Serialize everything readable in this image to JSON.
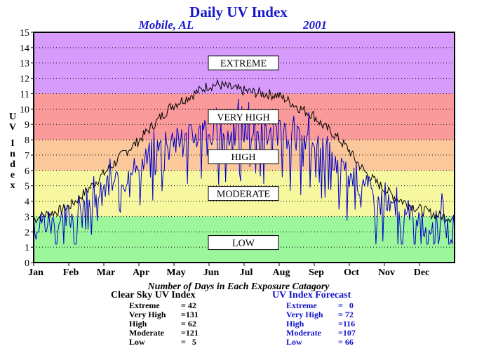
{
  "chart_data": {
    "type": "line",
    "title": "Daily UV Index",
    "location": "Mobile, AL",
    "year": "2001",
    "ylabel": "UV Index",
    "ylim": [
      0,
      15
    ],
    "yticks": [
      0,
      1,
      2,
      3,
      4,
      5,
      6,
      7,
      8,
      9,
      10,
      11,
      12,
      13,
      14,
      15
    ],
    "months": [
      "Jan",
      "Feb",
      "Mar",
      "Apr",
      "May",
      "Jun",
      "Jul",
      "Aug",
      "Sep",
      "Oct",
      "Nov",
      "Dec"
    ],
    "grid": true,
    "bands": [
      {
        "label": "LOW",
        "from": 0,
        "to": 3,
        "color": "#9cf79c"
      },
      {
        "label": "MODERATE",
        "from": 3,
        "to": 6,
        "color": "#f7f7a0"
      },
      {
        "label": "HIGH",
        "from": 6,
        "to": 8,
        "color": "#fbc89b"
      },
      {
        "label": "VERY HIGH",
        "from": 8,
        "to": 11,
        "color": "#fb9a9a"
      },
      {
        "label": "EXTREME",
        "from": 11,
        "to": 15,
        "color": "#d79cfb"
      }
    ],
    "series": [
      {
        "name": "Clear Sky UV Index",
        "color": "#000000",
        "x": [
          1,
          10,
          20,
          31,
          40,
          50,
          59,
          70,
          80,
          90,
          100,
          110,
          120,
          130,
          140,
          151,
          160,
          170,
          181,
          190,
          200,
          212,
          220,
          230,
          243,
          250,
          260,
          273,
          280,
          290,
          304,
          315,
          325,
          334,
          345,
          355,
          365
        ],
        "y": [
          2.8,
          3.1,
          3.3,
          3.6,
          4.2,
          4.9,
          5.6,
          6.4,
          7.2,
          7.8,
          8.6,
          9.4,
          10.2,
          10.6,
          11.0,
          11.5,
          11.6,
          11.4,
          11.2,
          11.1,
          11.0,
          10.9,
          10.6,
          10.1,
          9.6,
          9.0,
          8.4,
          7.4,
          6.6,
          5.7,
          4.8,
          4.2,
          3.8,
          3.5,
          3.2,
          3.0,
          2.9
        ]
      },
      {
        "name": "UV Index Forecast",
        "color": "#0000cc",
        "x": [
          1,
          10,
          20,
          31,
          40,
          50,
          59,
          70,
          80,
          90,
          100,
          110,
          120,
          130,
          140,
          151,
          160,
          170,
          181,
          190,
          200,
          212,
          220,
          230,
          243,
          250,
          260,
          273,
          280,
          290,
          304,
          315,
          325,
          334,
          345,
          355,
          365
        ],
        "y": [
          2.2,
          2.6,
          2.4,
          2.9,
          3.3,
          3.9,
          4.2,
          5.1,
          5.4,
          5.9,
          6.7,
          7.4,
          7.9,
          7.6,
          8.2,
          8.6,
          8.1,
          8.2,
          8.5,
          8.3,
          8.3,
          8.2,
          8.0,
          7.8,
          7.6,
          7.2,
          6.6,
          5.7,
          5.3,
          4.6,
          3.6,
          3.1,
          2.7,
          2.5,
          2.4,
          2.3,
          2.2
        ]
      }
    ]
  },
  "stats": {
    "heading": "Number of Days in Each Exposure Catagory",
    "clear": {
      "title": "Clear Sky UV Index",
      "rows": [
        {
          "label": "Extreme",
          "value": "= 42"
        },
        {
          "label": "Very High",
          "value": "=131"
        },
        {
          "label": "High",
          "value": "= 62"
        },
        {
          "label": "Moderate",
          "value": "=121"
        },
        {
          "label": "Low",
          "value": "=   5"
        }
      ]
    },
    "forecast": {
      "title": "UV Index Forecast",
      "rows": [
        {
          "label": "Extreme",
          "value": "=   0"
        },
        {
          "label": "Very High",
          "value": "= 72"
        },
        {
          "label": "High",
          "value": "=116"
        },
        {
          "label": "Moderate",
          "value": "=107"
        },
        {
          "label": "Low",
          "value": "= 66"
        }
      ]
    }
  }
}
